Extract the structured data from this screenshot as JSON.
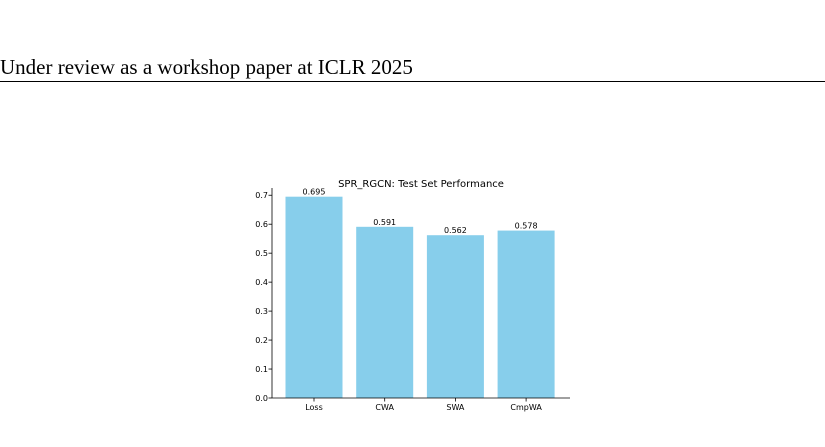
{
  "page": {
    "running_header": "Under review as a workshop paper at ICLR 2025"
  },
  "chart_data": {
    "type": "bar",
    "title": "SPR_RGCN: Test Set Performance",
    "xlabel": "",
    "ylabel": "",
    "categories": [
      "Loss",
      "CWA",
      "SWA",
      "CmpWA"
    ],
    "values": [
      0.695,
      0.591,
      0.562,
      0.578
    ],
    "value_labels": [
      "0.695",
      "0.591",
      "0.562",
      "0.578"
    ],
    "ylim": [
      0,
      0.725
    ],
    "yticks": [
      0.0,
      0.1,
      0.2,
      0.3,
      0.4,
      0.5,
      0.6,
      0.7
    ],
    "ytick_labels": [
      "0.0",
      "0.1",
      "0.2",
      "0.3",
      "0.4",
      "0.5",
      "0.6",
      "0.7"
    ],
    "grid": false,
    "bar_color": "#87ceeb",
    "spines": [
      "left",
      "bottom"
    ]
  }
}
